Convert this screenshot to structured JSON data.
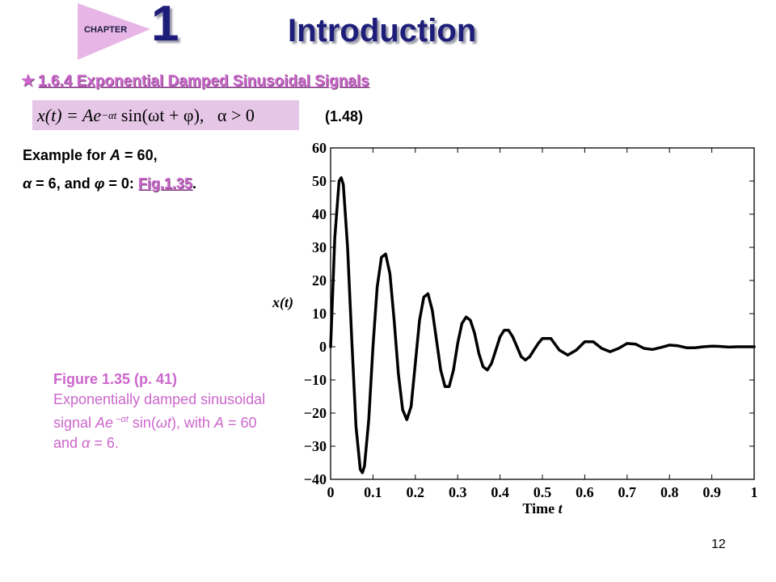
{
  "header": {
    "chapter_label": "CHAPTER",
    "chapter_number": "1",
    "title": "Introduction"
  },
  "section": {
    "star": "★",
    "heading": "1.6.4 Exponential Damped Sinusoidal Signals"
  },
  "equation": {
    "lhs": "x(t) = Ae",
    "exponent": "−αt",
    "rhs": " sin(ωt + φ),   α > 0",
    "number": "(1.48)"
  },
  "example": {
    "line1_prefix": "Example for ",
    "var_A": "A",
    "line1_suffix": " = 60,",
    "line2_alpha": "α",
    "line2_mid": " = 6, and ",
    "line2_phi": "φ",
    "line2_suffix": " = 0: ",
    "fig_link": "Fig.1.35",
    "line2_end": "."
  },
  "caption": {
    "title": "Figure 1.35  (p. 41)",
    "text1": "Exponentially damped sinusoidal signal ",
    "var_Ae": "Ae",
    "exponent": " −αt",
    "text2": " sin(",
    "var_w": "ω",
    "var_t": "t",
    "text3": "), with ",
    "var_A": "A",
    "text4": " = 60 and ",
    "var_alpha": "α",
    "text5": " = 6."
  },
  "chart_data": {
    "type": "line",
    "xlabel": "Time t",
    "ylabel": "x(t)",
    "xlim": [
      0,
      1
    ],
    "ylim": [
      -40,
      60
    ],
    "xticks": [
      "0",
      "0.1",
      "0.2",
      "0.3",
      "0.4",
      "0.5",
      "0.6",
      "0.7",
      "0.8",
      "0.9",
      "1"
    ],
    "yticks": [
      "−40",
      "−30",
      "−20",
      "−10",
      "0",
      "10",
      "20",
      "30",
      "40",
      "50",
      "60"
    ],
    "grid": false,
    "series": [
      {
        "x": [
          0,
          0.01,
          0.02,
          0.025,
          0.03,
          0.04,
          0.05,
          0.06,
          0.07,
          0.075,
          0.08,
          0.09,
          0.1,
          0.11,
          0.12,
          0.13,
          0.14,
          0.15,
          0.16,
          0.17,
          0.18,
          0.19,
          0.2,
          0.21,
          0.22,
          0.23,
          0.24,
          0.25,
          0.26,
          0.27,
          0.28,
          0.29,
          0.3,
          0.31,
          0.32,
          0.33,
          0.34,
          0.35,
          0.36,
          0.37,
          0.38,
          0.39,
          0.4,
          0.41,
          0.42,
          0.43,
          0.44,
          0.45,
          0.46,
          0.47,
          0.48,
          0.49,
          0.5,
          0.52,
          0.54,
          0.56,
          0.58,
          0.6,
          0.62,
          0.64,
          0.66,
          0.68,
          0.7,
          0.72,
          0.74,
          0.76,
          0.78,
          0.8,
          0.82,
          0.84,
          0.86,
          0.88,
          0.9,
          0.92,
          0.94,
          0.96,
          0.98,
          1.0
        ],
        "y": [
          0,
          33,
          50,
          51,
          49,
          30,
          2,
          -24,
          -37,
          -38,
          -36,
          -22,
          0,
          18,
          27,
          28,
          22,
          8,
          -8,
          -19,
          -22,
          -18,
          -5,
          8,
          15,
          16,
          11,
          2,
          -7,
          -12,
          -12,
          -7,
          1,
          7,
          9,
          8,
          4,
          -2,
          -6,
          -7,
          -5,
          -1,
          3,
          5,
          5,
          3,
          0,
          -3,
          -4,
          -3,
          -1,
          1,
          2.5,
          2.5,
          -1,
          -2.5,
          -1,
          1.5,
          1.5,
          -0.5,
          -1.5,
          -0.5,
          1,
          0.8,
          -0.5,
          -0.8,
          -0.2,
          0.5,
          0.3,
          -0.3,
          -0.3,
          0,
          0.2,
          0.1,
          -0.1,
          0,
          0,
          0
        ]
      }
    ]
  },
  "page_number": "12"
}
